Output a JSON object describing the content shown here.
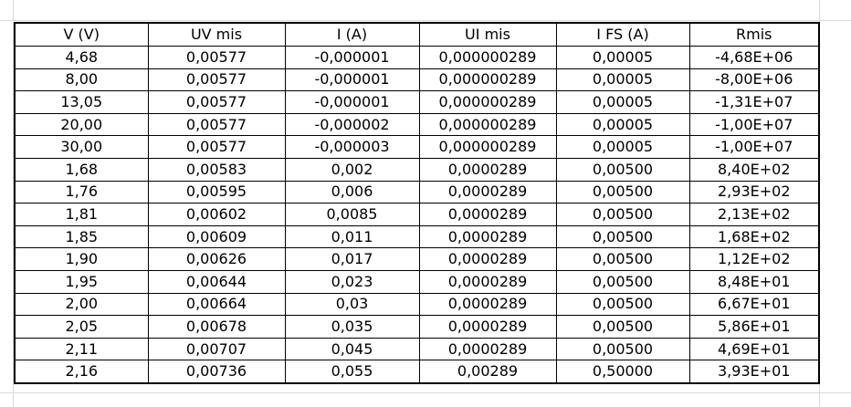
{
  "table": {
    "headers": [
      "V (V)",
      "UV mis",
      "I (A)",
      "UI mis",
      "I FS (A)",
      "Rmis"
    ],
    "rows": [
      [
        "4,68",
        "0,00577",
        "-0,000001",
        "0,000000289",
        "0,00005",
        "-4,68E+06"
      ],
      [
        "8,00",
        "0,00577",
        "-0,000001",
        "0,000000289",
        "0,00005",
        "-8,00E+06"
      ],
      [
        "13,05",
        "0,00577",
        "-0,000001",
        "0,000000289",
        "0,00005",
        "-1,31E+07"
      ],
      [
        "20,00",
        "0,00577",
        "-0,000002",
        "0,000000289",
        "0,00005",
        "-1,00E+07"
      ],
      [
        "30,00",
        "0,00577",
        "-0,000003",
        "0,000000289",
        "0,00005",
        "-1,00E+07"
      ],
      [
        "1,68",
        "0,00583",
        "0,002",
        "0,0000289",
        "0,00500",
        "8,40E+02"
      ],
      [
        "1,76",
        "0,00595",
        "0,006",
        "0,0000289",
        "0,00500",
        "2,93E+02"
      ],
      [
        "1,81",
        "0,00602",
        "0,0085",
        "0,0000289",
        "0,00500",
        "2,13E+02"
      ],
      [
        "1,85",
        "0,00609",
        "0,011",
        "0,0000289",
        "0,00500",
        "1,68E+02"
      ],
      [
        "1,90",
        "0,00626",
        "0,017",
        "0,0000289",
        "0,00500",
        "1,12E+02"
      ],
      [
        "1,95",
        "0,00644",
        "0,023",
        "0,0000289",
        "0,00500",
        "8,48E+01"
      ],
      [
        "2,00",
        "0,00664",
        "0,03",
        "0,0000289",
        "0,00500",
        "6,67E+01"
      ],
      [
        "2,05",
        "0,00678",
        "0,035",
        "0,0000289",
        "0,00500",
        "5,86E+01"
      ],
      [
        "2,11",
        "0,00707",
        "0,045",
        "0,0000289",
        "0,00500",
        "4,69E+01"
      ],
      [
        "2,16",
        "0,00736",
        "0,055",
        "0,00289",
        "0,50000",
        "3,93E+01"
      ]
    ]
  }
}
